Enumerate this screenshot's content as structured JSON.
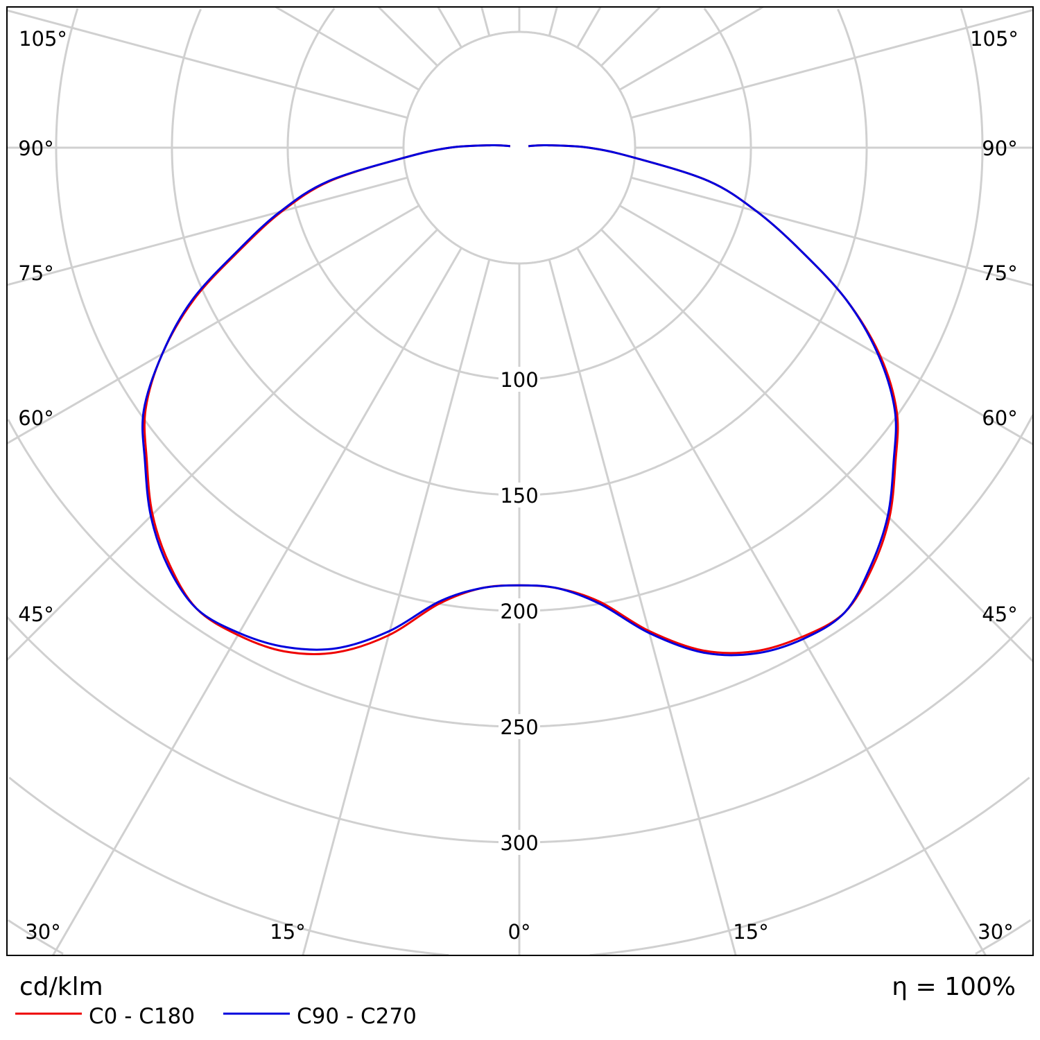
{
  "chart_data": {
    "type": "polar",
    "unit_label": "cd/klm",
    "efficiency_label": "η = 100%",
    "radial_ticks": [
      100,
      150,
      200,
      250,
      300
    ],
    "radial_grid": [
      50,
      100,
      150,
      200,
      250,
      300,
      350,
      400
    ],
    "radial_range": [
      0,
      400
    ],
    "angle_grid_step_deg": 15,
    "angle_labels": {
      "bottom": [
        "30°",
        "15°",
        "0°",
        "15°",
        "30°"
      ],
      "left": [
        "105°",
        "90°",
        "75°",
        "60°",
        "45°"
      ],
      "right": [
        "105°",
        "90°",
        "75°",
        "60°",
        "45°"
      ]
    },
    "grid": true,
    "legend_placement": "bottom-left",
    "gamma_deg": [
      0,
      5,
      10,
      15,
      20,
      25,
      30,
      35,
      40,
      45,
      50,
      55,
      60,
      65,
      70,
      75,
      80,
      85,
      90,
      95,
      100
    ],
    "series": [
      {
        "name": "C0 - C180",
        "color": "#ee0000",
        "left_values": [
          189,
          191,
          200,
          218,
          232,
          240,
          243,
          243,
          235,
          224,
          210,
          197,
          178,
          155,
          128,
          106,
          83,
          50,
          30,
          12,
          4
        ],
        "right_values": [
          189,
          191,
          199,
          216,
          231,
          240,
          244,
          245,
          237,
          226,
          212,
          199,
          180,
          156,
          129,
          106,
          83,
          50,
          30,
          12,
          4
        ]
      },
      {
        "name": "C90 - C270",
        "color": "#0000dd",
        "left_values": [
          189,
          191,
          199,
          216,
          230,
          238,
          242,
          243,
          236,
          225,
          211,
          198,
          178,
          156,
          129,
          107,
          84,
          50,
          30,
          12,
          4
        ],
        "right_values": [
          189,
          191,
          200,
          217,
          232,
          241,
          245,
          245,
          236,
          225,
          211,
          198,
          179,
          156,
          129,
          106,
          83,
          50,
          30,
          12,
          4
        ]
      }
    ]
  }
}
